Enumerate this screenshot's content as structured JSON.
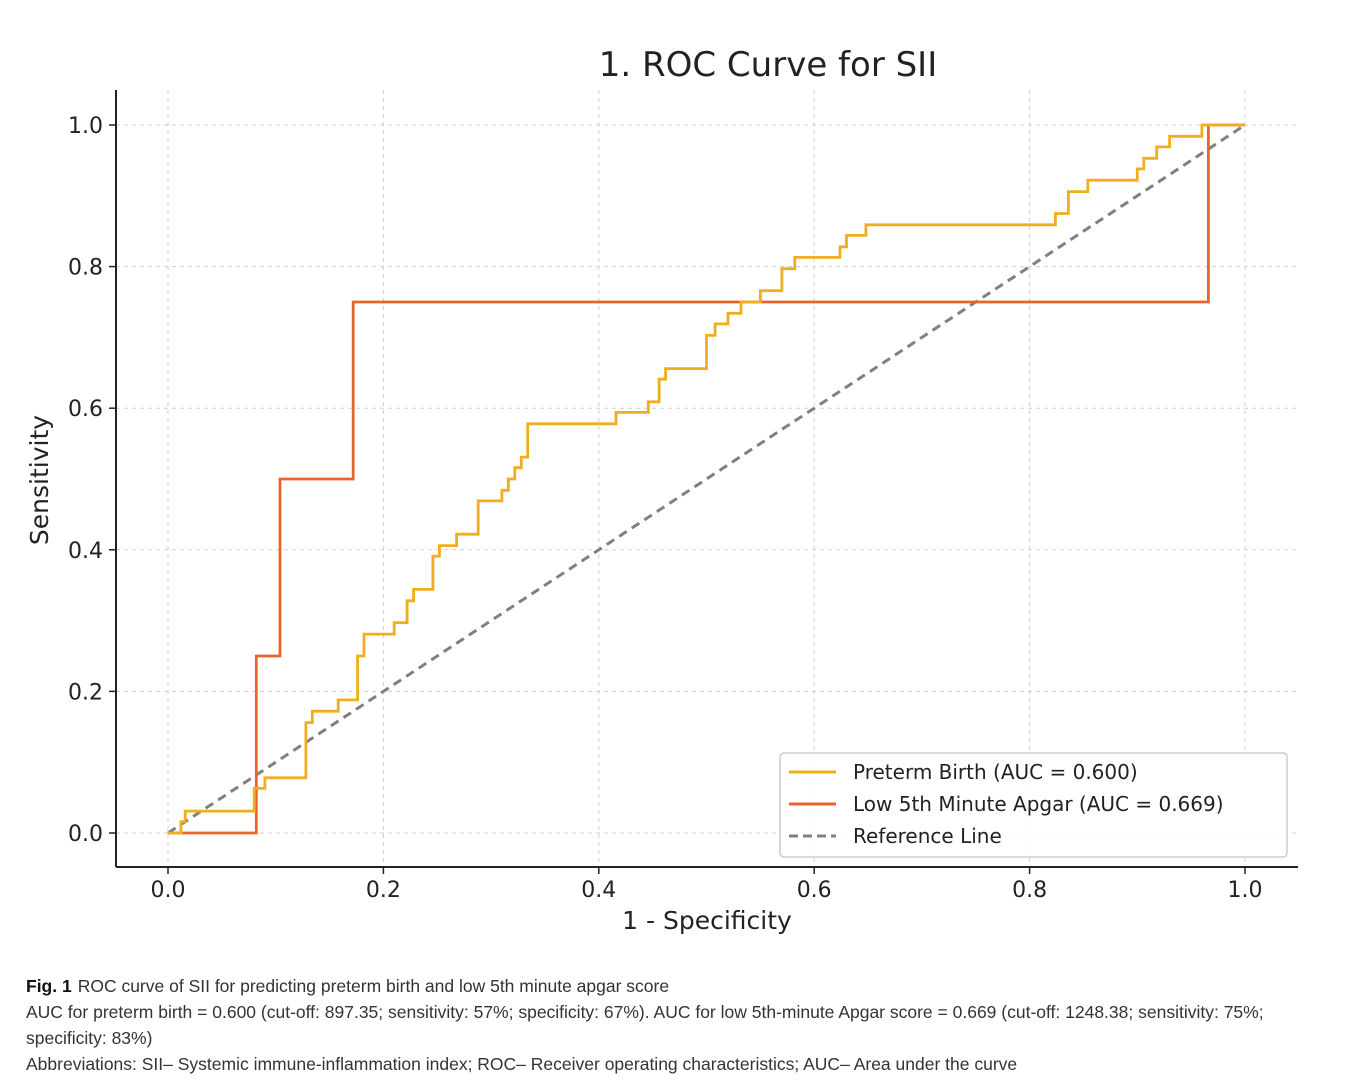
{
  "chart_data": {
    "type": "line",
    "title": "1. ROC Curve for SII",
    "xlabel": "1 - Specificity",
    "ylabel": "Sensitivity",
    "xlim": [
      0.0,
      1.0
    ],
    "ylim": [
      0.0,
      1.0
    ],
    "xticks": [
      "0.0",
      "0.2",
      "0.4",
      "0.6",
      "0.8",
      "1.0"
    ],
    "yticks": [
      "0.0",
      "0.2",
      "0.4",
      "0.6",
      "0.8",
      "1.0"
    ],
    "grid": true,
    "legend_position": "bottom-right",
    "series": [
      {
        "name": "Preterm Birth (AUC = 0.600)",
        "color": "#f0ad1e",
        "style": "step",
        "points": [
          [
            0.0,
            0.0
          ],
          [
            0.012,
            0.0
          ],
          [
            0.012,
            0.016
          ],
          [
            0.016,
            0.016
          ],
          [
            0.016,
            0.031
          ],
          [
            0.08,
            0.031
          ],
          [
            0.08,
            0.063
          ],
          [
            0.09,
            0.063
          ],
          [
            0.09,
            0.078
          ],
          [
            0.128,
            0.078
          ],
          [
            0.128,
            0.156
          ],
          [
            0.134,
            0.156
          ],
          [
            0.134,
            0.172
          ],
          [
            0.158,
            0.172
          ],
          [
            0.158,
            0.188
          ],
          [
            0.176,
            0.188
          ],
          [
            0.176,
            0.25
          ],
          [
            0.182,
            0.25
          ],
          [
            0.182,
            0.281
          ],
          [
            0.21,
            0.281
          ],
          [
            0.21,
            0.297
          ],
          [
            0.222,
            0.297
          ],
          [
            0.222,
            0.328
          ],
          [
            0.228,
            0.328
          ],
          [
            0.228,
            0.344
          ],
          [
            0.246,
            0.344
          ],
          [
            0.246,
            0.391
          ],
          [
            0.252,
            0.391
          ],
          [
            0.252,
            0.406
          ],
          [
            0.268,
            0.406
          ],
          [
            0.268,
            0.422
          ],
          [
            0.288,
            0.422
          ],
          [
            0.288,
            0.469
          ],
          [
            0.31,
            0.469
          ],
          [
            0.31,
            0.484
          ],
          [
            0.316,
            0.484
          ],
          [
            0.316,
            0.5
          ],
          [
            0.322,
            0.5
          ],
          [
            0.322,
            0.516
          ],
          [
            0.328,
            0.516
          ],
          [
            0.328,
            0.531
          ],
          [
            0.334,
            0.531
          ],
          [
            0.334,
            0.578
          ],
          [
            0.416,
            0.578
          ],
          [
            0.416,
            0.594
          ],
          [
            0.446,
            0.594
          ],
          [
            0.446,
            0.609
          ],
          [
            0.456,
            0.609
          ],
          [
            0.456,
            0.641
          ],
          [
            0.462,
            0.641
          ],
          [
            0.462,
            0.656
          ],
          [
            0.5,
            0.656
          ],
          [
            0.5,
            0.703
          ],
          [
            0.508,
            0.703
          ],
          [
            0.508,
            0.719
          ],
          [
            0.52,
            0.719
          ],
          [
            0.52,
            0.734
          ],
          [
            0.532,
            0.734
          ],
          [
            0.532,
            0.75
          ],
          [
            0.55,
            0.75
          ],
          [
            0.55,
            0.766
          ],
          [
            0.57,
            0.766
          ],
          [
            0.57,
            0.797
          ],
          [
            0.582,
            0.797
          ],
          [
            0.582,
            0.813
          ],
          [
            0.624,
            0.813
          ],
          [
            0.624,
            0.828
          ],
          [
            0.63,
            0.828
          ],
          [
            0.63,
            0.844
          ],
          [
            0.648,
            0.844
          ],
          [
            0.648,
            0.859
          ],
          [
            0.824,
            0.859
          ],
          [
            0.824,
            0.875
          ],
          [
            0.836,
            0.875
          ],
          [
            0.836,
            0.906
          ],
          [
            0.854,
            0.906
          ],
          [
            0.854,
            0.922
          ],
          [
            0.9,
            0.922
          ],
          [
            0.9,
            0.938
          ],
          [
            0.906,
            0.938
          ],
          [
            0.906,
            0.953
          ],
          [
            0.918,
            0.953
          ],
          [
            0.918,
            0.969
          ],
          [
            0.93,
            0.969
          ],
          [
            0.93,
            0.984
          ],
          [
            0.96,
            0.984
          ],
          [
            0.96,
            1.0
          ],
          [
            1.0,
            1.0
          ]
        ]
      },
      {
        "name": "Low 5th Minute Apgar (AUC = 0.669)",
        "color": "#e8652a",
        "style": "step",
        "points": [
          [
            0.0,
            0.0
          ],
          [
            0.082,
            0.0
          ],
          [
            0.082,
            0.25
          ],
          [
            0.104,
            0.25
          ],
          [
            0.104,
            0.5
          ],
          [
            0.172,
            0.5
          ],
          [
            0.172,
            0.75
          ],
          [
            0.966,
            0.75
          ],
          [
            0.966,
            1.0
          ],
          [
            1.0,
            1.0
          ]
        ]
      },
      {
        "name": "Reference Line",
        "color": "#808080",
        "style": "dashed",
        "points": [
          [
            0.0,
            0.0
          ],
          [
            1.0,
            1.0
          ]
        ]
      }
    ]
  },
  "caption": {
    "fig_label": "Fig. 1",
    "title": "ROC curve of SII for predicting preterm birth and low 5th minute apgar score",
    "details": "AUC for preterm birth = 0.600 (cut-off: 897.35; sensitivity: 57%; specificity: 67%). AUC for low 5th-minute Apgar score = 0.669 (cut-off: 1248.38; sensitivity: 75%; specificity: 83%)",
    "abbreviations": "Abbreviations: SII– Systemic immune-inflammation index; ROC– Receiver operating characteristics; AUC– Area under the curve"
  }
}
